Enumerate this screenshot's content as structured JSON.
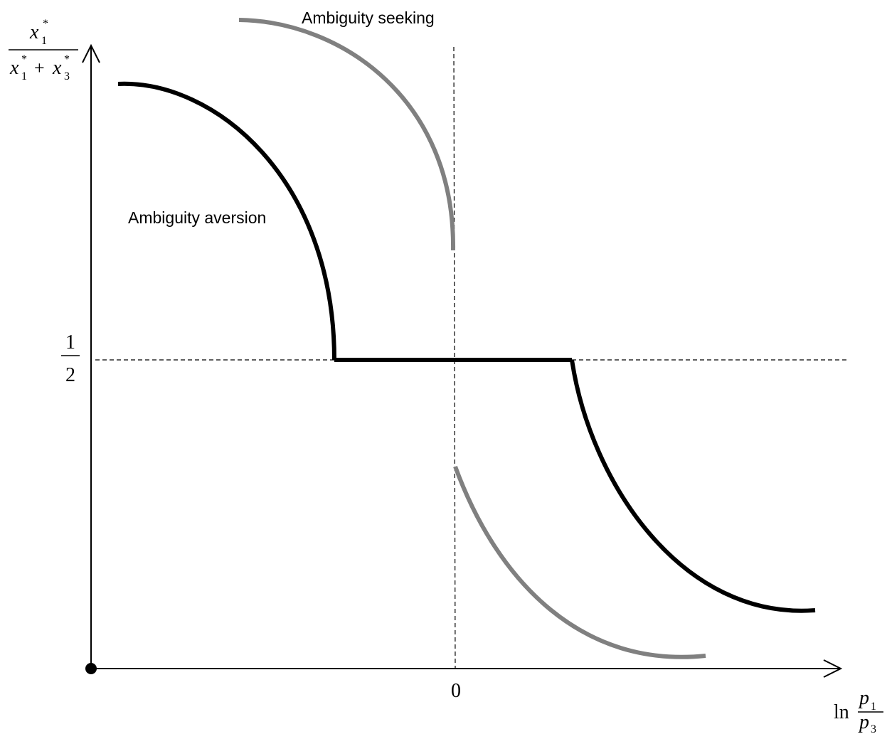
{
  "y_axis": {
    "numerator": "x",
    "numerator_sub": "1",
    "numerator_sup": "*",
    "denominator_a": "x",
    "denominator_a_sub": "1",
    "denominator_a_sup": "*",
    "plus": "+",
    "denominator_b": "x",
    "denominator_b_sub": "3",
    "denominator_b_sup": "*"
  },
  "half_tick": {
    "numerator": "1",
    "denominator": "2"
  },
  "x_axis": {
    "zero_label": "0",
    "ln": "ln",
    "p_top": "p",
    "p_top_sub": "1",
    "p_bottom": "p",
    "p_bottom_sub": "3"
  },
  "labels": {
    "ambiguity_seeking": "Ambiguity seeking",
    "ambiguity_aversion": "Ambiguity aversion"
  },
  "colors": {
    "aversion_curve": "#000000",
    "seeking_curve": "#808080",
    "axes": "#000000"
  }
}
